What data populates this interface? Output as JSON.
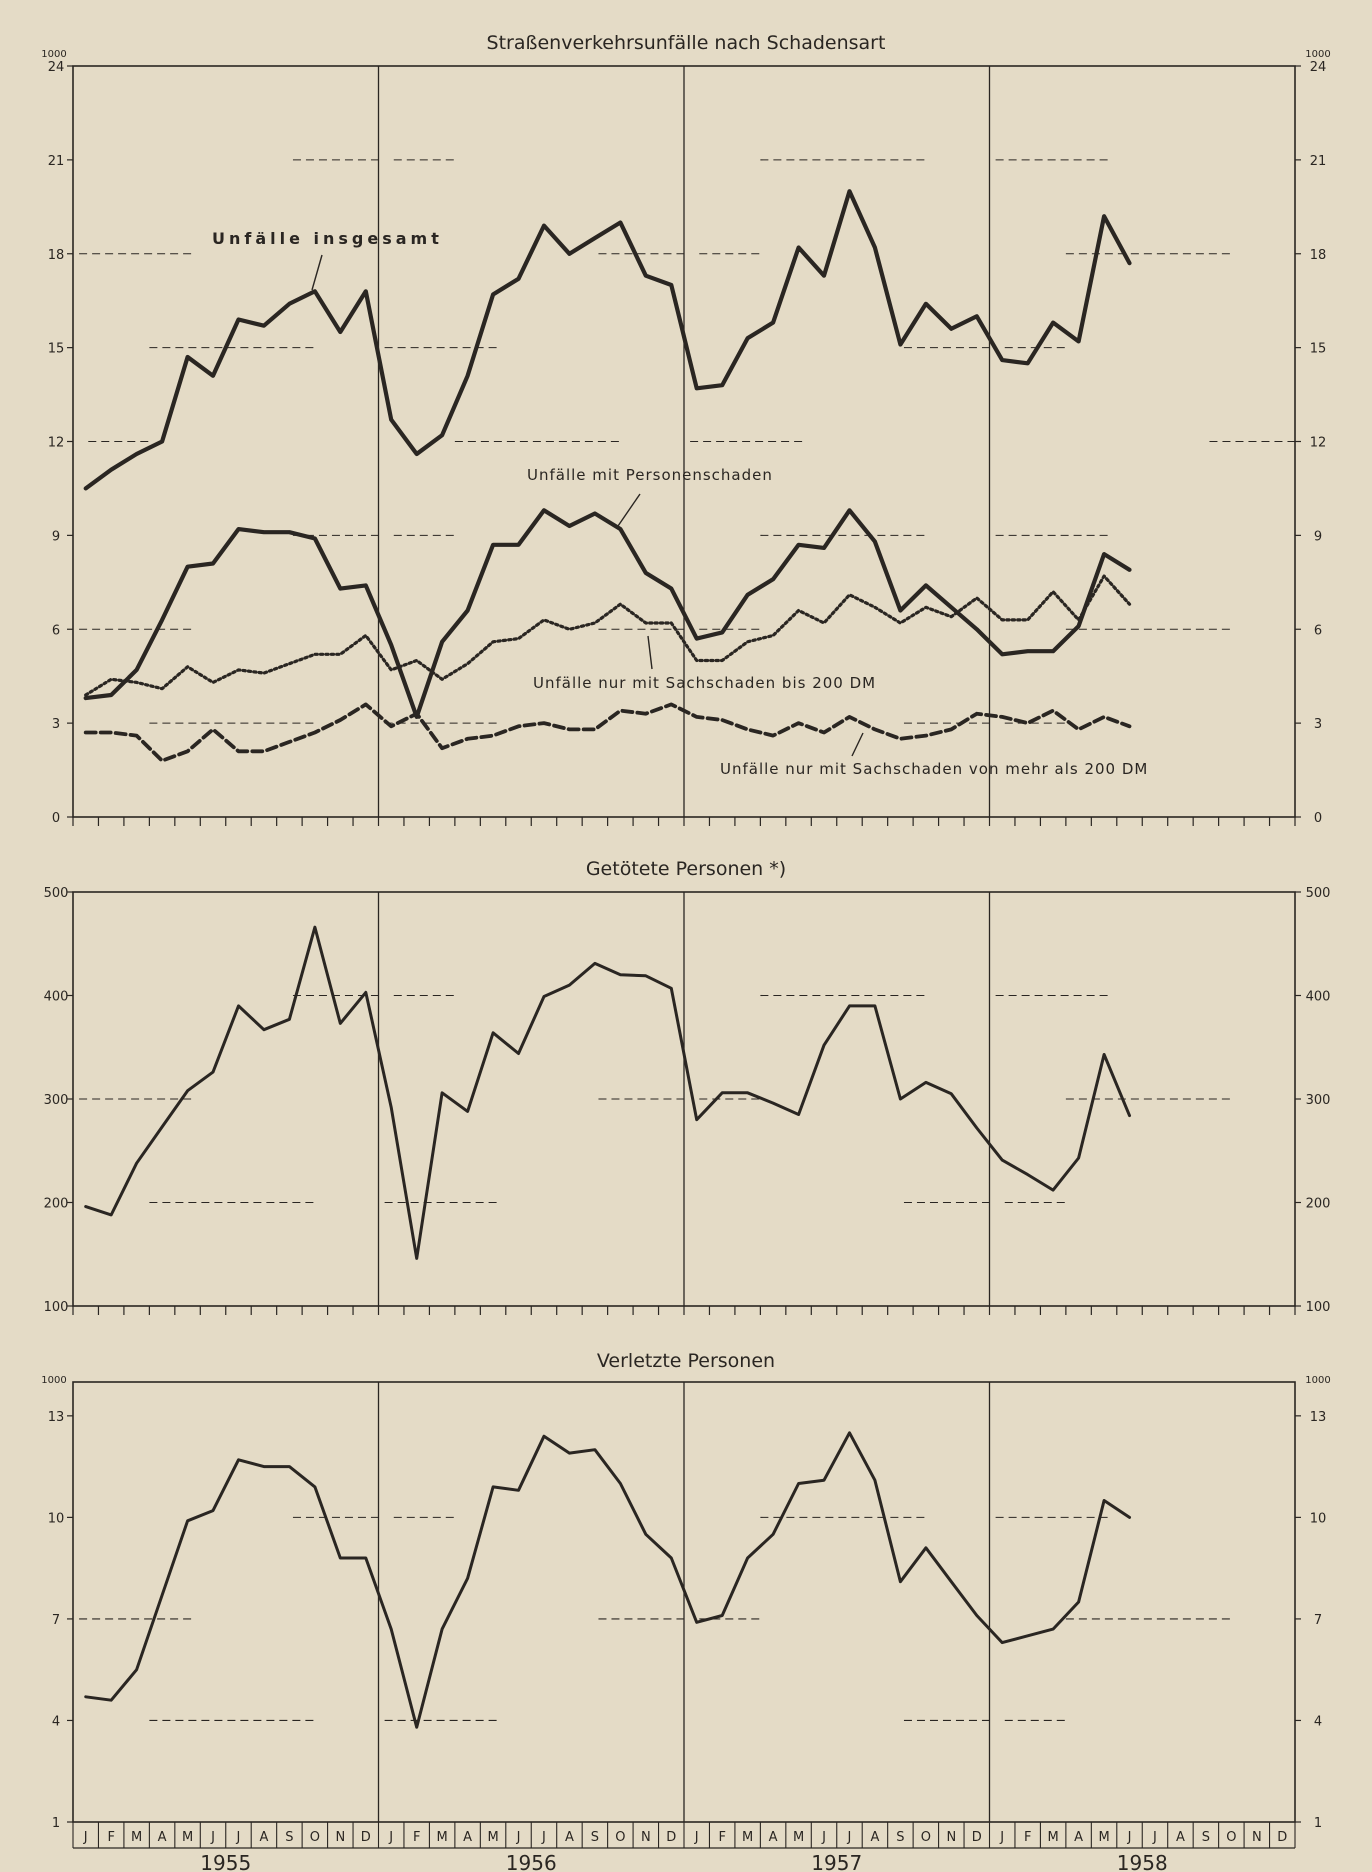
{
  "colors": {
    "ink": "#2a2622",
    "background": "#e4dbc6"
  },
  "months": [
    "J",
    "F",
    "M",
    "A",
    "M",
    "J",
    "J",
    "A",
    "S",
    "O",
    "N",
    "D"
  ],
  "years": [
    "1955",
    "1956",
    "1957",
    "1958"
  ],
  "chart_data": [
    {
      "type": "line",
      "title": "Straßenverkehrsunfälle nach Schadensart",
      "unit_label": "1000",
      "ylim": [
        0,
        24
      ],
      "yticks": [
        "0",
        "3",
        "6",
        "9",
        "12",
        "15",
        "18",
        "21",
        "24"
      ],
      "x": [
        "1955-01",
        "1955-02",
        "1955-03",
        "1955-04",
        "1955-05",
        "1955-06",
        "1955-07",
        "1955-08",
        "1955-09",
        "1955-10",
        "1955-11",
        "1955-12",
        "1956-01",
        "1956-02",
        "1956-03",
        "1956-04",
        "1956-05",
        "1956-06",
        "1956-07",
        "1956-08",
        "1956-09",
        "1956-10",
        "1956-11",
        "1956-12",
        "1957-01",
        "1957-02",
        "1957-03",
        "1957-04",
        "1957-05",
        "1957-06",
        "1957-07",
        "1957-08",
        "1957-09",
        "1957-10",
        "1957-11",
        "1957-12",
        "1958-01",
        "1958-02",
        "1958-03",
        "1958-04",
        "1958-05",
        "1958-06"
      ],
      "grid": "dashed horizontal",
      "series": [
        {
          "name": "Unfälle insgesamt",
          "style": "solid-bold",
          "values": [
            10.5,
            11.1,
            11.6,
            12.0,
            14.7,
            14.1,
            15.9,
            15.7,
            16.4,
            16.8,
            15.5,
            16.8,
            12.7,
            11.6,
            12.2,
            14.1,
            16.7,
            17.2,
            18.9,
            18.0,
            18.5,
            19.0,
            17.3,
            17.0,
            13.7,
            13.8,
            15.3,
            15.8,
            18.2,
            17.3,
            20.0,
            18.2,
            15.1,
            16.4,
            15.6,
            16.0,
            14.6,
            14.5,
            15.8,
            15.2,
            19.2,
            17.7
          ]
        },
        {
          "name": "Unfälle mit Personenschaden",
          "style": "solid-bold",
          "values": [
            3.8,
            3.9,
            4.7,
            6.3,
            8.0,
            8.1,
            9.2,
            9.1,
            9.1,
            8.9,
            7.3,
            7.4,
            5.5,
            3.2,
            5.6,
            6.6,
            8.7,
            8.7,
            9.8,
            9.3,
            9.7,
            9.2,
            7.8,
            7.3,
            5.7,
            5.9,
            7.1,
            7.6,
            8.7,
            8.6,
            9.8,
            8.8,
            6.6,
            7.4,
            6.7,
            6.0,
            5.2,
            5.3,
            5.3,
            6.1,
            8.4,
            7.9
          ]
        },
        {
          "name": "Unfälle nur mit Sachschaden bis 200 DM",
          "style": "dotted",
          "values": [
            3.9,
            4.4,
            4.3,
            4.1,
            4.8,
            4.3,
            4.7,
            4.6,
            4.9,
            5.2,
            5.2,
            5.8,
            4.7,
            5.0,
            4.4,
            4.9,
            5.6,
            5.7,
            6.3,
            6.0,
            6.2,
            6.8,
            6.2,
            6.2,
            5.0,
            5.0,
            5.6,
            5.8,
            6.6,
            6.2,
            7.1,
            6.7,
            6.2,
            6.7,
            6.4,
            7.0,
            6.3,
            6.3,
            7.2,
            6.3,
            7.7,
            6.8
          ]
        },
        {
          "name": "Unfälle nur mit Sachschaden von mehr als 200 DM",
          "style": "dashed",
          "values": [
            2.7,
            2.7,
            2.6,
            1.8,
            2.1,
            2.8,
            2.1,
            2.1,
            2.4,
            2.7,
            3.1,
            3.6,
            2.9,
            3.3,
            2.2,
            2.5,
            2.6,
            2.9,
            3.0,
            2.8,
            2.8,
            3.4,
            3.3,
            3.6,
            3.2,
            3.1,
            2.8,
            2.6,
            3.0,
            2.7,
            3.2,
            2.8,
            2.5,
            2.6,
            2.8,
            3.3,
            3.2,
            3.0,
            3.4,
            2.8,
            3.2,
            2.9
          ]
        }
      ],
      "annotations": [
        "Unfälle insgesamt",
        "Unfälle mit Personenschaden",
        "Unfälle nur mit Sachschaden bis 200 DM",
        "Unfälle nur mit Sachschaden von mehr als 200 DM"
      ]
    },
    {
      "type": "line",
      "title": "Getötete Personen *)",
      "ylim": [
        100,
        500
      ],
      "yticks": [
        "100",
        "200",
        "300",
        "400",
        "500"
      ],
      "grid": "dashed horizontal",
      "series": [
        {
          "values": [
            196,
            188,
            238,
            273,
            308,
            326,
            390,
            367,
            377,
            466,
            373,
            403,
            292,
            146,
            306,
            288,
            364,
            344,
            399,
            410,
            431,
            420,
            419,
            407,
            280,
            306,
            306,
            296,
            285,
            352,
            390,
            390,
            300,
            316,
            305,
            272,
            241,
            227,
            212,
            243,
            343,
            284
          ]
        }
      ]
    },
    {
      "type": "line",
      "title": "Verletzte Personen",
      "unit_label": "1000",
      "ylim": [
        1,
        14
      ],
      "yticks": [
        "1",
        "4",
        "7",
        "10",
        "13"
      ],
      "grid": "dashed horizontal",
      "series": [
        {
          "values": [
            4.7,
            4.6,
            5.5,
            7.7,
            9.9,
            10.2,
            11.7,
            11.5,
            11.5,
            10.9,
            8.8,
            8.8,
            6.7,
            3.8,
            6.7,
            8.2,
            10.9,
            10.8,
            12.4,
            11.9,
            12.0,
            11.0,
            9.5,
            8.8,
            6.9,
            7.1,
            8.8,
            9.5,
            11.0,
            11.1,
            12.5,
            11.1,
            8.1,
            9.1,
            8.1,
            7.1,
            6.3,
            6.5,
            6.7,
            7.5,
            10.5,
            10.0
          ]
        }
      ]
    }
  ]
}
